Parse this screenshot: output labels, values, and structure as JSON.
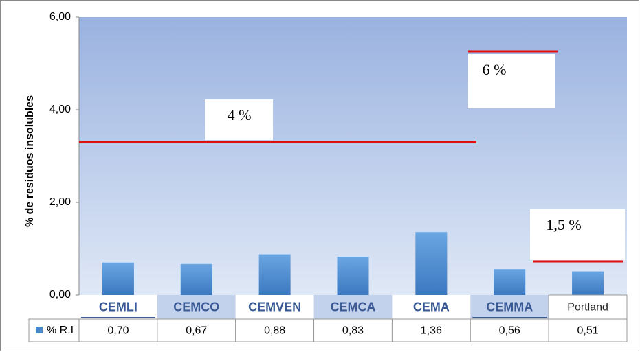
{
  "chart_data": {
    "type": "bar",
    "y_label": "% de residuos insolubles",
    "categories": [
      "CEMLI",
      "CEMCO",
      "CEMVEN",
      "CEMCA",
      "CEMA",
      "CEMMA",
      "Portland"
    ],
    "series": [
      {
        "name": "% R.I",
        "color": "#4a86cc",
        "values": [
          0.7,
          0.67,
          0.88,
          0.83,
          1.36,
          0.56,
          0.51
        ],
        "value_labels": [
          "0,70",
          "0,67",
          "0,88",
          "0,83",
          "1,36",
          "0,56",
          "0,51"
        ]
      }
    ],
    "ylim": [
      0,
      6
    ],
    "yticks": [
      {
        "value": 0,
        "label": "0,00"
      },
      {
        "value": 2,
        "label": "2,00"
      },
      {
        "value": 4,
        "label": "4,00"
      },
      {
        "value": 6,
        "label": "6,00"
      }
    ],
    "annotations": [
      "4 %",
      "6 %",
      "1,5 %"
    ]
  }
}
